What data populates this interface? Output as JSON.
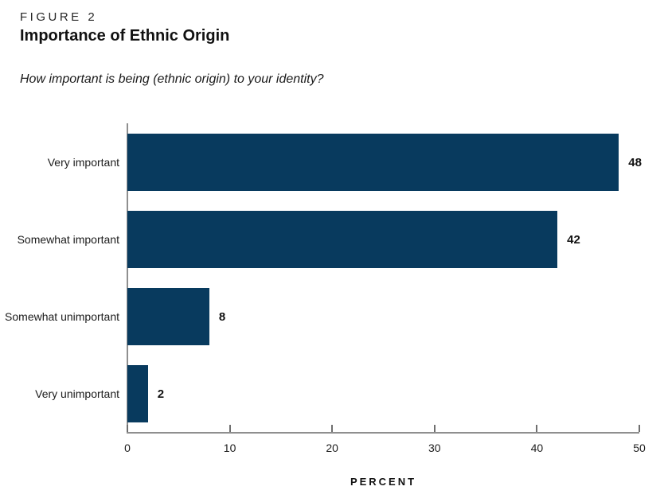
{
  "figure": {
    "label": "FIGURE 2",
    "title": "Importance of Ethnic Origin",
    "subtitle": "How important is being (ethnic origin) to your identity?"
  },
  "chart_data": {
    "type": "bar",
    "orientation": "horizontal",
    "title": "Importance of Ethnic Origin",
    "question": "How important is being (ethnic origin) to your identity?",
    "categories": [
      "Very important",
      "Somewhat important",
      "Somewhat unimportant",
      "Very unimportant"
    ],
    "values": [
      48,
      42,
      8,
      2
    ],
    "value_labels": [
      "48",
      "42",
      "8",
      "2"
    ],
    "xlabel": "PERCENT",
    "ylabel": "",
    "xlim": [
      0,
      50
    ],
    "xticks": [
      0,
      10,
      20,
      30,
      40,
      50
    ],
    "grid": false,
    "legend": false,
    "bar_color": "#083a5e",
    "axis_color": "#8f8f8f",
    "value_label_color": "#111111"
  }
}
